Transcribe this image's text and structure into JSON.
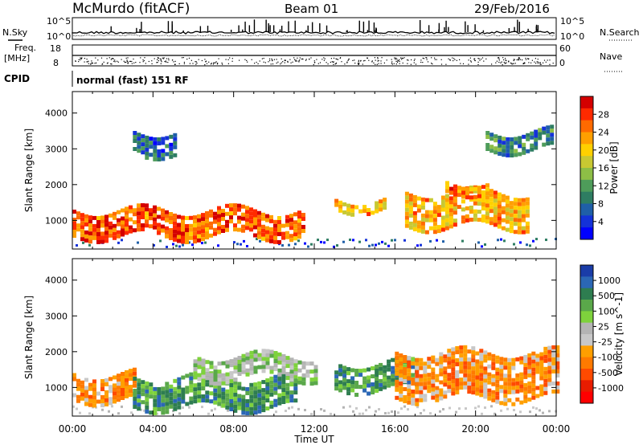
{
  "header": {
    "station": "McMurdo (fitACF)",
    "beam": "Beam 01",
    "date": "29/Feb/2016"
  },
  "top_panels": {
    "nsky_label": "N.Sky",
    "nsearch_label": "N.Search",
    "noise_tick_hi": "10^5",
    "noise_tick_lo": "10^0",
    "freq_label_1": "Freq.",
    "freq_label_2": "[MHz]",
    "freq_tick_hi": "18",
    "freq_tick_lo": "8",
    "nave_label": "Nave",
    "nave_tick_hi": "60",
    "nave_tick_lo": "0",
    "cpid_label": "CPID",
    "cpid_text": "normal (fast) 151 RF"
  },
  "chart_data": [
    {
      "type": "heatmap",
      "title": "Power",
      "ylabel": "Slant Range [km]",
      "xlabel": "Time UT",
      "colorbar_label": "Power [dB]",
      "colorbar_ticks": [
        "28",
        "24",
        "20",
        "16",
        "12",
        "8",
        "4"
      ],
      "colorbar_colors": [
        "#d40000",
        "#ff2a00",
        "#ff6a00",
        "#ff9f00",
        "#ffd000",
        "#c8c832",
        "#8dbe46",
        "#4e9c5a",
        "#2e7d62",
        "#1f5fa8",
        "#1432d8",
        "#0000ff"
      ],
      "x_ticks": [
        "00:00",
        "04:00",
        "08:00",
        "12:00",
        "16:00",
        "20:00",
        "00:00"
      ],
      "y_ticks": [
        "1000",
        "2000",
        "3000",
        "4000"
      ],
      "ylim": [
        200,
        4600
      ],
      "xlim_hours": [
        0,
        24
      ],
      "features": [
        {
          "x_hours": [
            0,
            11.5
          ],
          "range_km": [
            600,
            1300
          ],
          "dB": 24
        },
        {
          "x_hours": [
            13.0,
            15.5
          ],
          "range_km": [
            1300,
            1600
          ],
          "dB": 20
        },
        {
          "x_hours": [
            16.5,
            22.5
          ],
          "range_km": [
            900,
            1800
          ],
          "dB": 20
        },
        {
          "x_hours": [
            18.5,
            20.5
          ],
          "range_km": [
            1800,
            2100
          ],
          "dB": 22
        },
        {
          "x_hours": [
            3.0,
            5.0
          ],
          "range_km": [
            2900,
            3500
          ],
          "dB": 6
        },
        {
          "x_hours": [
            20.5,
            23.8
          ],
          "range_km": [
            3000,
            3500
          ],
          "dB": 8
        }
      ]
    },
    {
      "type": "heatmap",
      "title": "Velocity",
      "ylabel": "Slant Range [km]",
      "xlabel": "Time UT",
      "colorbar_label": "Velocity [m s^-1]",
      "colorbar_ticks": [
        "1000",
        "500",
        "100",
        "25",
        "-25",
        "-100",
        "-500",
        "-1000"
      ],
      "colorbar_colors": [
        "#1a3ca8",
        "#2b67b5",
        "#2e7d50",
        "#5aa84a",
        "#7ed23c",
        "#b4b4b4",
        "#c8c8c8",
        "#ff9f00",
        "#ff7a00",
        "#ff4a00",
        "#e81c00",
        "#ff0000"
      ],
      "x_ticks": [
        "00:00",
        "04:00",
        "08:00",
        "12:00",
        "16:00",
        "20:00",
        "00:00"
      ],
      "y_ticks": [
        "1000",
        "2000",
        "3000",
        "4000"
      ],
      "ylim": [
        200,
        4600
      ],
      "xlim_hours": [
        0,
        24
      ],
      "features": [
        {
          "x_hours": [
            0,
            3.0
          ],
          "range_km": [
            700,
            1400
          ],
          "velocity": -100
        },
        {
          "x_hours": [
            3.0,
            11.0
          ],
          "range_km": [
            500,
            1300
          ],
          "velocity": 50
        },
        {
          "x_hours": [
            6.0,
            12.0
          ],
          "range_km": [
            1300,
            1900
          ],
          "velocity": 0
        },
        {
          "x_hours": [
            13.0,
            17.0
          ],
          "range_km": [
            1000,
            1700
          ],
          "velocity": 60
        },
        {
          "x_hours": [
            16.0,
            24.0
          ],
          "range_km": [
            700,
            2000
          ],
          "velocity": -150
        }
      ]
    }
  ]
}
